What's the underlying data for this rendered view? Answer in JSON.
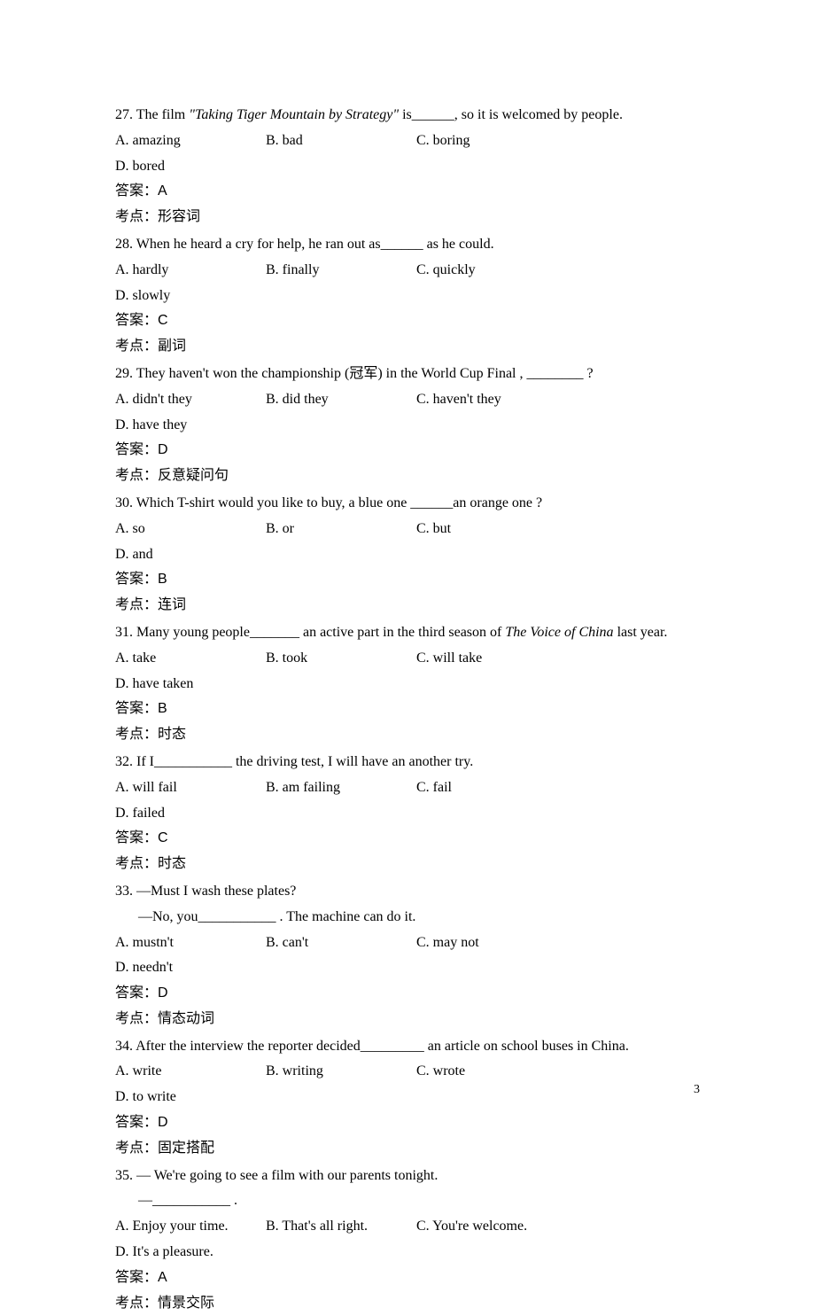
{
  "page_number": "3",
  "questions": [
    {
      "num": "27",
      "text_pre": "27. The film ",
      "text_italic": "\"Taking Tiger Mountain by Strategy\"",
      "text_post": " is______, so it is welcomed by people.",
      "options": {
        "A": "A. amazing",
        "B": "B. bad",
        "C": "C. boring",
        "D": "D. bored"
      },
      "answer_label": "答案：",
      "answer": "A",
      "topic_label": "考点：",
      "topic": "形容词"
    },
    {
      "num": "28",
      "text": "28. When he heard a cry for help, he ran out as______ as he could.",
      "options": {
        "A": "A. hardly",
        "B": "B. finally",
        "C": "C. quickly",
        "D": "D. slowly"
      },
      "answer_label": "答案：",
      "answer": "C",
      "topic_label": "考点：",
      "topic": "副词"
    },
    {
      "num": "29",
      "text": "29. They haven't won the championship (冠军) in the World Cup Final ,  ________  ?",
      "options": {
        "A": "A. didn't they",
        "B": "B. did they",
        "C": "C. haven't they",
        "D": "D. have they"
      },
      "answer_label": "答案：",
      "answer": "D",
      "topic_label": "考点：",
      "topic": "反意疑问句"
    },
    {
      "num": "30",
      "text": "30. Which T-shirt would you like to buy, a blue one  ______an orange one ?",
      "options": {
        "A": "A. so",
        "B": "B. or",
        "C": "C. but",
        "D": "D. and"
      },
      "answer_label": "答案：",
      "answer": "B",
      "topic_label": "考点：",
      "topic": "连词"
    },
    {
      "num": "31",
      "text_pre": "31. Many young people_______  an active part in the third season of ",
      "text_italic": "The Voice of China",
      "text_post": " last year.",
      "options": {
        "A": "A. take",
        "B": "B. took",
        "C": "C. will take",
        "D": "D. have taken"
      },
      "answer_label": "答案：",
      "answer": "B",
      "topic_label": "考点：",
      "topic": "时态"
    },
    {
      "num": "32",
      "text": "32. If I___________  the driving test, I will have an another try.",
      "options": {
        "A": "A. will fail",
        "B": "B. am failing",
        "C": "C. fail",
        "D": "D. failed"
      },
      "answer_label": "答案：",
      "answer": "C",
      "topic_label": "考点：",
      "topic": "时态"
    },
    {
      "num": "33",
      "line1": "33. —Must I wash these plates?",
      "line2": "—No, you___________  . The machine can do it.",
      "options": {
        "A": "A. mustn't",
        "B": "B. can't",
        "C": "C. may not",
        "D": "D. needn't"
      },
      "answer_label": "答案：",
      "answer": "D",
      "topic_label": "考点：",
      "topic": "情态动词"
    },
    {
      "num": "34",
      "text": "34. After the interview the reporter decided_________  an article on school buses in China.",
      "options": {
        "A": "A. write",
        "B": "B. writing",
        "C": "C. wrote",
        "D": "D. to write"
      },
      "answer_label": "答案：",
      "answer": "D",
      "topic_label": "考点：",
      "topic": "固定搭配"
    },
    {
      "num": "35",
      "line1": "35. — We're going to see a film with our parents tonight.",
      "line2": "—___________ .",
      "options": {
        "A": "A. Enjoy your time.",
        "B": "B. That's all right.",
        "C": "C. You're welcome.",
        "D": "D. It's a pleasure."
      },
      "answer_label": "答案：",
      "answer": "A",
      "topic_label": "考点：",
      "topic": "情景交际"
    }
  ]
}
